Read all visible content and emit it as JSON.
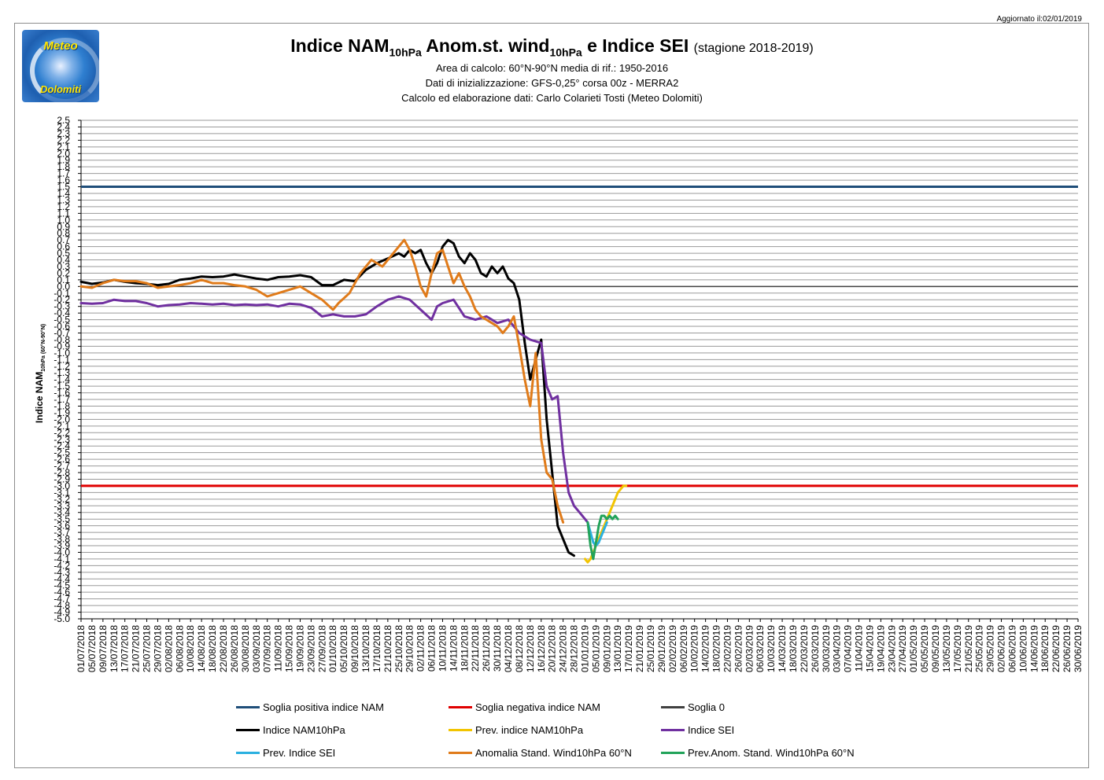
{
  "updated": "Aggiornato il:02/01/2019",
  "logo": {
    "line1": "Meteo",
    "line2": "Dolomiti"
  },
  "title": {
    "part1": "Indice NAM",
    "sub1": "10hPa",
    "part2": " Anom.st. wind",
    "sub2": "10hPa",
    "part3": " e Indice SEI ",
    "season": "(stagione 2018-2019)"
  },
  "subtitles": [
    "Area di calcolo: 60°N-90°N media di rif.: 1950-2016",
    "Dati di inizializzazione: GFS-0,25° corsa 00z - MERRA2",
    "Calcolo ed elaborazione dati: Carlo Colarieti Tosti (Meteo Dolomiti)"
  ],
  "ylabel": {
    "main": "Indice NAM",
    "sub": "10hPa (60°N-90°N)"
  },
  "chart_data": {
    "type": "line",
    "ylim": [
      -5.0,
      2.5
    ],
    "ytick_step": 0.1,
    "yticks": [
      "2.5",
      "2.4",
      "2.3",
      "2.2",
      "2.1",
      "2.0",
      "1.9",
      "1.8",
      "1.7",
      "1.6",
      "1.5",
      "1.4",
      "1.3",
      "1.2",
      "1.1",
      "1.0",
      "0.9",
      "0.8",
      "0.7",
      "0.6",
      "0.5",
      "0.4",
      "0.3",
      "0.2",
      "0.1",
      "0.0",
      "-0.1",
      "-0.2",
      "-0.3",
      "-0.4",
      "-0.5",
      "-0.6",
      "-0.7",
      "-0.8",
      "-0.9",
      "-1.0",
      "-1.1",
      "-1.2",
      "-1.3",
      "-1.4",
      "-1.5",
      "-1.6",
      "-1.7",
      "-1.8",
      "-1.9",
      "-2.0",
      "-2.1",
      "-2.2",
      "-2.3",
      "-2.4",
      "-2.5",
      "-2.6",
      "-2.7",
      "-2.8",
      "-2.9",
      "-3.0",
      "-3.1",
      "-3.2",
      "-3.3",
      "-3.4",
      "-3.5",
      "-3.6",
      "-3.7",
      "-3.8",
      "-3.9",
      "-4.0",
      "-4.1",
      "-4.2",
      "-4.3",
      "-4.4",
      "-4.5",
      "-4.6",
      "-4.7",
      "-4.8",
      "-4.9",
      "-5.0"
    ],
    "x_start": "01/07/2018",
    "x_end": "30/06/2019",
    "xticks": [
      "01/07/2018",
      "05/07/2018",
      "09/07/2018",
      "13/07/2018",
      "17/07/2018",
      "21/07/2018",
      "25/07/2018",
      "29/07/2018",
      "02/08/2018",
      "06/08/2018",
      "10/08/2018",
      "14/08/2018",
      "18/08/2018",
      "22/08/2018",
      "26/08/2018",
      "30/08/2018",
      "03/09/2018",
      "07/09/2018",
      "11/09/2018",
      "15/09/2018",
      "19/09/2018",
      "23/09/2018",
      "27/09/2018",
      "01/10/2018",
      "05/10/2018",
      "09/10/2018",
      "13/10/2018",
      "17/10/2018",
      "21/10/2018",
      "25/10/2018",
      "29/10/2018",
      "02/11/2018",
      "06/11/2018",
      "10/11/2018",
      "14/11/2018",
      "18/11/2018",
      "22/11/2018",
      "26/11/2018",
      "30/11/2018",
      "04/12/2018",
      "08/12/2018",
      "12/12/2018",
      "16/12/2018",
      "20/12/2018",
      "24/12/2018",
      "28/12/2018",
      "01/01/2019",
      "05/01/2019",
      "09/01/2019",
      "13/01/2019",
      "17/01/2019",
      "21/01/2019",
      "25/01/2019",
      "29/01/2019",
      "02/02/2019",
      "06/02/2019",
      "10/02/2019",
      "14/02/2019",
      "18/02/2019",
      "22/02/2019",
      "26/02/2019",
      "02/03/2019",
      "06/03/2019",
      "10/03/2019",
      "14/03/2019",
      "18/03/2019",
      "22/03/2019",
      "26/03/2019",
      "30/03/2019",
      "03/04/2019",
      "07/04/2019",
      "11/04/2019",
      "15/04/2019",
      "19/04/2019",
      "23/04/2019",
      "27/04/2019",
      "01/05/2019",
      "05/05/2019",
      "09/05/2019",
      "13/05/2019",
      "17/05/2019",
      "21/05/2019",
      "25/05/2019",
      "29/05/2019",
      "02/06/2019",
      "06/06/2019",
      "10/06/2019",
      "14/06/2019",
      "18/06/2019",
      "22/06/2019",
      "26/06/2019",
      "30/06/2019"
    ],
    "thresholds": [
      {
        "name": "Soglia positiva indice NAM",
        "value": 1.5,
        "color": "#1f4e79"
      },
      {
        "name": "Soglia negativa indice NAM",
        "value": -3.0,
        "color": "#e00000"
      },
      {
        "name": "Soglia 0",
        "value": 0.0,
        "color": "#404040"
      }
    ],
    "series": [
      {
        "name": "Indice NAM10hPa",
        "color": "#000000",
        "x": [
          "01/07/2018",
          "05/07/2018",
          "09/07/2018",
          "13/07/2018",
          "17/07/2018",
          "21/07/2018",
          "25/07/2018",
          "29/07/2018",
          "02/08/2018",
          "06/08/2018",
          "10/08/2018",
          "14/08/2018",
          "18/08/2018",
          "22/08/2018",
          "26/08/2018",
          "30/08/2018",
          "03/09/2018",
          "07/09/2018",
          "11/09/2018",
          "15/09/2018",
          "19/09/2018",
          "23/09/2018",
          "27/09/2018",
          "01/10/2018",
          "05/10/2018",
          "09/10/2018",
          "13/10/2018",
          "17/10/2018",
          "21/10/2018",
          "25/10/2018",
          "27/10/2018",
          "29/10/2018",
          "31/10/2018",
          "02/11/2018",
          "04/11/2018",
          "06/11/2018",
          "08/11/2018",
          "10/11/2018",
          "12/11/2018",
          "14/11/2018",
          "16/11/2018",
          "18/11/2018",
          "20/11/2018",
          "22/11/2018",
          "24/11/2018",
          "26/11/2018",
          "28/11/2018",
          "30/11/2018",
          "02/12/2018",
          "04/12/2018",
          "06/12/2018",
          "08/12/2018",
          "10/12/2018",
          "12/12/2018",
          "14/12/2018",
          "16/12/2018",
          "18/12/2018",
          "20/12/2018",
          "22/12/2018",
          "24/12/2018",
          "26/12/2018",
          "28/12/2018",
          "30/12/2018",
          "01/01/2019",
          "02/01/2019"
        ],
        "y": [
          0.07,
          0.04,
          0.06,
          0.1,
          0.07,
          0.05,
          0.04,
          0.02,
          0.04,
          0.1,
          0.12,
          0.15,
          0.14,
          0.15,
          0.18,
          0.15,
          0.12,
          0.1,
          0.14,
          0.15,
          0.17,
          0.14,
          0.02,
          0.02,
          0.1,
          0.08,
          0.25,
          0.35,
          0.42,
          0.5,
          0.45,
          0.55,
          0.5,
          0.55,
          0.35,
          0.2,
          0.35,
          0.6,
          0.7,
          0.65,
          0.45,
          0.35,
          0.5,
          0.4,
          0.2,
          0.15,
          0.3,
          0.2,
          0.3,
          0.12,
          0.05,
          -0.2,
          -0.85,
          -1.4,
          -1.1,
          -0.8,
          -2.0,
          -2.8,
          -3.6,
          -3.8,
          -4.0,
          -4.05,
          null,
          null,
          null
        ]
      },
      {
        "name": "Prev. indice NAM10hPa",
        "color": "#f2c400",
        "x": [
          "01/01/2019",
          "02/01/2019",
          "03/01/2019",
          "04/01/2019",
          "05/01/2019",
          "06/01/2019",
          "07/01/2019",
          "08/01/2019",
          "09/01/2019",
          "10/01/2019",
          "11/01/2019",
          "12/01/2019",
          "13/01/2019",
          "14/01/2019",
          "15/01/2019",
          "16/01/2019"
        ],
        "y": [
          -4.1,
          -4.15,
          -4.1,
          -4.0,
          -3.9,
          -3.8,
          -3.7,
          -3.6,
          -3.5,
          -3.4,
          -3.3,
          -3.2,
          -3.1,
          -3.05,
          -3.0,
          -3.0
        ]
      },
      {
        "name": "Indice SEI",
        "color": "#7030a0",
        "x": [
          "01/07/2018",
          "05/07/2018",
          "09/07/2018",
          "13/07/2018",
          "17/07/2018",
          "21/07/2018",
          "25/07/2018",
          "29/07/2018",
          "02/08/2018",
          "06/08/2018",
          "10/08/2018",
          "14/08/2018",
          "18/08/2018",
          "22/08/2018",
          "26/08/2018",
          "30/08/2018",
          "03/09/2018",
          "07/09/2018",
          "11/09/2018",
          "15/09/2018",
          "19/09/2018",
          "23/09/2018",
          "27/09/2018",
          "01/10/2018",
          "05/10/2018",
          "09/10/2018",
          "13/10/2018",
          "17/10/2018",
          "21/10/2018",
          "25/10/2018",
          "29/10/2018",
          "02/11/2018",
          "06/11/2018",
          "08/11/2018",
          "10/11/2018",
          "14/11/2018",
          "18/11/2018",
          "22/11/2018",
          "26/11/2018",
          "30/11/2018",
          "04/12/2018",
          "08/12/2018",
          "12/12/2018",
          "16/12/2018",
          "18/12/2018",
          "20/12/2018",
          "22/12/2018",
          "24/12/2018",
          "26/12/2018",
          "28/12/2018",
          "30/12/2018",
          "01/01/2019",
          "02/01/2019"
        ],
        "y": [
          -0.25,
          -0.26,
          -0.25,
          -0.2,
          -0.22,
          -0.22,
          -0.25,
          -0.3,
          -0.28,
          -0.27,
          -0.25,
          -0.26,
          -0.27,
          -0.26,
          -0.28,
          -0.27,
          -0.28,
          -0.27,
          -0.3,
          -0.26,
          -0.27,
          -0.32,
          -0.45,
          -0.42,
          -0.45,
          -0.45,
          -0.42,
          -0.3,
          -0.2,
          -0.15,
          -0.2,
          -0.35,
          -0.5,
          -0.3,
          -0.25,
          -0.2,
          -0.45,
          -0.5,
          -0.45,
          -0.55,
          -0.5,
          -0.7,
          -0.8,
          -0.85,
          -1.5,
          -1.7,
          -1.65,
          -2.5,
          -3.1,
          -3.3,
          -3.4,
          -3.5,
          -3.55
        ]
      },
      {
        "name": "Prev. Indice SEI",
        "color": "#2ab0e0",
        "x": [
          "02/01/2019",
          "03/01/2019",
          "04/01/2019",
          "05/01/2019",
          "06/01/2019",
          "07/01/2019",
          "08/01/2019",
          "09/01/2019"
        ],
        "y": [
          -3.55,
          -3.7,
          -3.85,
          -3.9,
          -3.85,
          -3.75,
          -3.65,
          -3.55
        ]
      },
      {
        "name": "Anomalia Stand. Wind10hPa 60°N",
        "color": "#e07b1a",
        "x": [
          "01/07/2018",
          "05/07/2018",
          "09/07/2018",
          "13/07/2018",
          "17/07/2018",
          "21/07/2018",
          "25/07/2018",
          "29/07/2018",
          "02/08/2018",
          "06/08/2018",
          "10/08/2018",
          "14/08/2018",
          "18/08/2018",
          "22/08/2018",
          "26/08/2018",
          "30/08/2018",
          "03/09/2018",
          "07/09/2018",
          "11/09/2018",
          "15/09/2018",
          "19/09/2018",
          "23/09/2018",
          "27/09/2018",
          "01/10/2018",
          "03/10/2018",
          "07/10/2018",
          "11/10/2018",
          "15/10/2018",
          "19/10/2018",
          "23/10/2018",
          "27/10/2018",
          "29/10/2018",
          "31/10/2018",
          "02/11/2018",
          "04/11/2018",
          "06/11/2018",
          "08/11/2018",
          "10/11/2018",
          "12/11/2018",
          "14/11/2018",
          "16/11/2018",
          "18/11/2018",
          "20/11/2018",
          "22/11/2018",
          "24/11/2018",
          "26/11/2018",
          "28/11/2018",
          "30/11/2018",
          "02/12/2018",
          "04/12/2018",
          "06/12/2018",
          "08/12/2018",
          "10/12/2018",
          "12/12/2018",
          "14/12/2018",
          "16/12/2018",
          "18/12/2018",
          "20/12/2018",
          "22/12/2018",
          "24/12/2018",
          "26/12/2018",
          "28/12/2018",
          "30/12/2018",
          "01/01/2019",
          "02/01/2019"
        ],
        "y": [
          0.0,
          -0.02,
          0.05,
          0.1,
          0.08,
          0.08,
          0.05,
          -0.02,
          0.0,
          0.02,
          0.05,
          0.1,
          0.05,
          0.05,
          0.02,
          0.0,
          -0.05,
          -0.15,
          -0.1,
          -0.05,
          0.0,
          -0.1,
          -0.2,
          -0.35,
          -0.25,
          -0.1,
          0.2,
          0.4,
          0.3,
          0.5,
          0.7,
          0.55,
          0.3,
          0.0,
          -0.15,
          0.2,
          0.5,
          0.55,
          0.3,
          0.05,
          0.2,
          0.0,
          -0.15,
          -0.35,
          -0.45,
          -0.5,
          -0.55,
          -0.6,
          -0.7,
          -0.6,
          -0.45,
          -0.9,
          -1.4,
          -1.8,
          -1.0,
          -2.3,
          -2.8,
          -2.9,
          -3.3,
          -3.55,
          null,
          null,
          null,
          null,
          null
        ]
      },
      {
        "name": "Prev.Anom. Stand. Wind10hPa 60°N",
        "color": "#22a35a",
        "x": [
          "02/01/2019",
          "03/01/2019",
          "04/01/2019",
          "05/01/2019",
          "06/01/2019",
          "07/01/2019",
          "08/01/2019",
          "09/01/2019",
          "10/01/2019",
          "11/01/2019",
          "12/01/2019",
          "13/01/2019"
        ],
        "y": [
          -3.55,
          -3.9,
          -4.1,
          -3.85,
          -3.6,
          -3.45,
          -3.45,
          -3.5,
          -3.45,
          -3.5,
          -3.45,
          -3.5
        ]
      }
    ]
  },
  "legend": [
    {
      "label": "Soglia positiva indice NAM",
      "color": "#1f4e79"
    },
    {
      "label": "Soglia negativa indice NAM",
      "color": "#e00000"
    },
    {
      "label": "Soglia 0",
      "color": "#404040"
    },
    {
      "label": "Indice NAM10hPa",
      "color": "#000000"
    },
    {
      "label": "Prev. indice NAM10hPa",
      "color": "#f2c400"
    },
    {
      "label": "Indice SEI",
      "color": "#7030a0"
    },
    {
      "label": "Prev. Indice SEI",
      "color": "#2ab0e0"
    },
    {
      "label": "Anomalia Stand. Wind10hPa 60°N",
      "color": "#e07b1a"
    },
    {
      "label": "Prev.Anom. Stand. Wind10hPa 60°N",
      "color": "#22a35a"
    }
  ]
}
